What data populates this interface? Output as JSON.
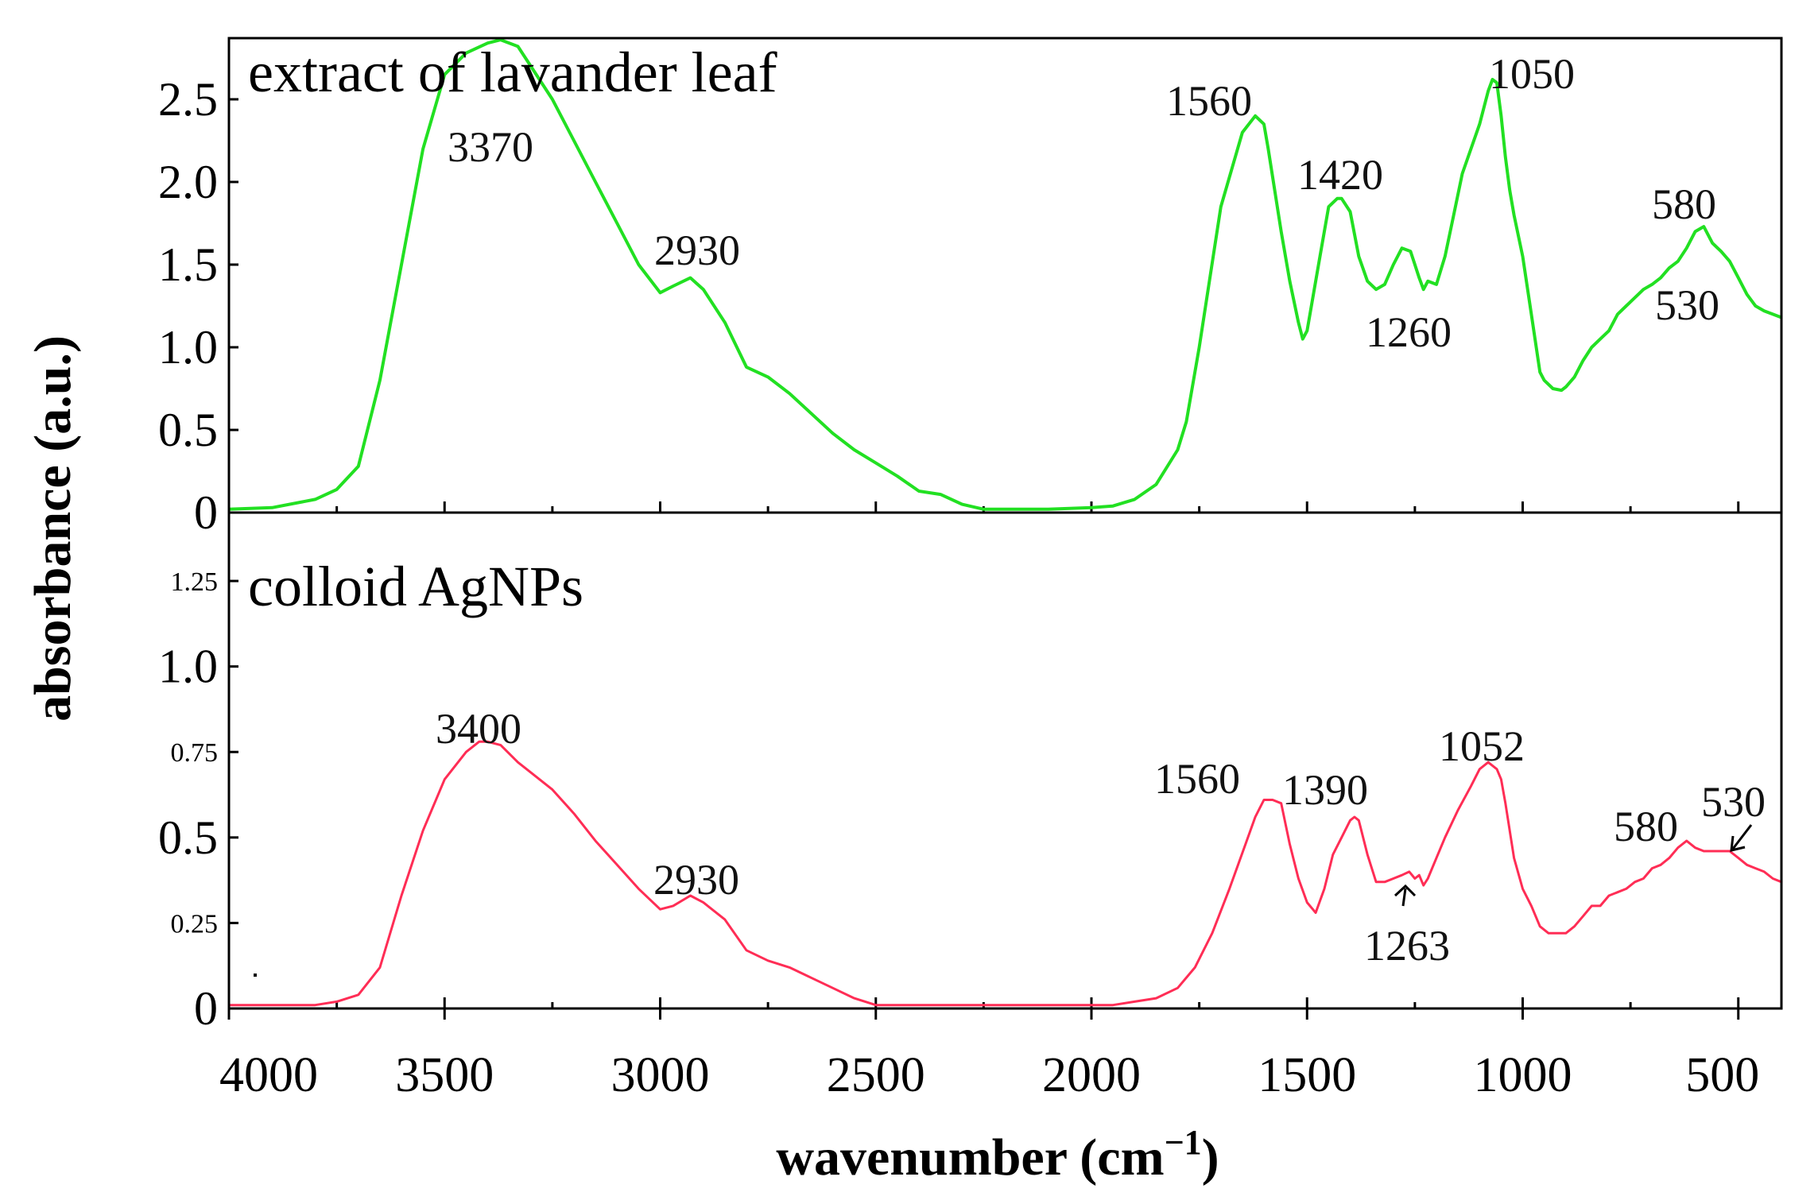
{
  "chart_data": [
    {
      "type": "line",
      "title": "extract of lavander leaf",
      "color": "#22e022",
      "xlim": [
        4000,
        400
      ],
      "ylim": [
        0,
        2.87
      ],
      "y_ticks": [
        {
          "v": 0,
          "label": "0",
          "size": "large"
        },
        {
          "v": 0.5,
          "label": "0.5",
          "size": "large"
        },
        {
          "v": 1.0,
          "label": "1.0",
          "size": "large"
        },
        {
          "v": 1.5,
          "label": "1.5",
          "size": "large"
        },
        {
          "v": 2.0,
          "label": "2.0",
          "size": "large"
        },
        {
          "v": 2.5,
          "label": "2.5",
          "size": "large"
        }
      ],
      "annotations": [
        "3370",
        "2930",
        "1560",
        "1420",
        "1260",
        "1050",
        "580",
        "530"
      ],
      "x": [
        4000,
        3900,
        3800,
        3750,
        3700,
        3650,
        3600,
        3550,
        3500,
        3450,
        3400,
        3370,
        3330,
        3300,
        3250,
        3200,
        3150,
        3100,
        3050,
        3000,
        2970,
        2930,
        2900,
        2850,
        2800,
        2750,
        2700,
        2650,
        2600,
        2550,
        2500,
        2450,
        2400,
        2350,
        2300,
        2250,
        2200,
        2100,
        2000,
        1950,
        1900,
        1850,
        1800,
        1780,
        1750,
        1700,
        1650,
        1620,
        1600,
        1590,
        1560,
        1540,
        1520,
        1510,
        1500,
        1490,
        1470,
        1450,
        1430,
        1420,
        1400,
        1380,
        1360,
        1340,
        1320,
        1300,
        1280,
        1260,
        1250,
        1240,
        1230,
        1220,
        1200,
        1180,
        1160,
        1140,
        1120,
        1100,
        1080,
        1070,
        1060,
        1050,
        1040,
        1030,
        1020,
        1000,
        980,
        960,
        950,
        930,
        910,
        900,
        880,
        860,
        840,
        820,
        800,
        780,
        760,
        740,
        720,
        700,
        680,
        660,
        640,
        620,
        600,
        580,
        560,
        540,
        520,
        500,
        480,
        460,
        440,
        420,
        400
      ],
      "y": [
        0.02,
        0.03,
        0.08,
        0.14,
        0.28,
        0.8,
        1.5,
        2.2,
        2.65,
        2.78,
        2.84,
        2.86,
        2.82,
        2.7,
        2.5,
        2.25,
        2.0,
        1.75,
        1.5,
        1.33,
        1.37,
        1.42,
        1.35,
        1.15,
        0.88,
        0.82,
        0.72,
        0.6,
        0.48,
        0.38,
        0.3,
        0.22,
        0.13,
        0.11,
        0.05,
        0.02,
        0.02,
        0.02,
        0.03,
        0.04,
        0.08,
        0.17,
        0.38,
        0.55,
        1.0,
        1.85,
        2.3,
        2.4,
        2.35,
        2.2,
        1.7,
        1.4,
        1.15,
        1.05,
        1.1,
        1.25,
        1.55,
        1.85,
        1.9,
        1.9,
        1.82,
        1.55,
        1.4,
        1.35,
        1.38,
        1.5,
        1.6,
        1.58,
        1.5,
        1.42,
        1.35,
        1.4,
        1.38,
        1.55,
        1.8,
        2.05,
        2.2,
        2.35,
        2.55,
        2.62,
        2.6,
        2.4,
        2.15,
        1.95,
        1.8,
        1.55,
        1.2,
        0.85,
        0.8,
        0.75,
        0.74,
        0.76,
        0.82,
        0.92,
        1.0,
        1.05,
        1.1,
        1.2,
        1.25,
        1.3,
        1.35,
        1.38,
        1.42,
        1.48,
        1.52,
        1.6,
        1.7,
        1.73,
        1.63,
        1.58,
        1.52,
        1.42,
        1.32,
        1.25,
        1.22,
        1.2,
        1.18
      ]
    },
    {
      "type": "line",
      "title": "colloid AgNPs",
      "color": "#ff2d55",
      "xlim": [
        4000,
        400
      ],
      "ylim": [
        0,
        1.45
      ],
      "y_ticks": [
        {
          "v": 0,
          "label": "0",
          "size": "large"
        },
        {
          "v": 0.25,
          "label": "0.25",
          "size": "small"
        },
        {
          "v": 0.5,
          "label": "0.5",
          "size": "large"
        },
        {
          "v": 0.75,
          "label": "0.75",
          "size": "small"
        },
        {
          "v": 1.0,
          "label": "1.0",
          "size": "large"
        },
        {
          "v": 1.25,
          "label": "1.25",
          "size": "small"
        }
      ],
      "annotations": [
        "3400",
        "2930",
        "1560",
        "1390",
        "1263",
        "1052",
        "580",
        "530"
      ],
      "x": [
        4000,
        3900,
        3800,
        3750,
        3700,
        3650,
        3600,
        3550,
        3500,
        3450,
        3420,
        3400,
        3370,
        3330,
        3300,
        3250,
        3200,
        3150,
        3100,
        3050,
        3000,
        2970,
        2930,
        2900,
        2850,
        2800,
        2750,
        2700,
        2650,
        2600,
        2550,
        2500,
        2450,
        2400,
        2300,
        2200,
        2100,
        2000,
        1950,
        1900,
        1850,
        1800,
        1760,
        1720,
        1680,
        1640,
        1620,
        1600,
        1580,
        1560,
        1540,
        1520,
        1500,
        1480,
        1460,
        1440,
        1420,
        1400,
        1390,
        1380,
        1360,
        1340,
        1320,
        1300,
        1280,
        1263,
        1250,
        1240,
        1230,
        1220,
        1200,
        1180,
        1150,
        1120,
        1100,
        1080,
        1060,
        1050,
        1040,
        1020,
        1000,
        980,
        960,
        940,
        920,
        900,
        880,
        860,
        840,
        820,
        800,
        780,
        760,
        740,
        720,
        700,
        680,
        660,
        640,
        620,
        600,
        580,
        560,
        540,
        520,
        500,
        480,
        460,
        440,
        420,
        400
      ],
      "y": [
        0.01,
        0.01,
        0.01,
        0.02,
        0.04,
        0.12,
        0.33,
        0.52,
        0.67,
        0.75,
        0.78,
        0.78,
        0.77,
        0.72,
        0.69,
        0.64,
        0.57,
        0.49,
        0.42,
        0.35,
        0.29,
        0.3,
        0.33,
        0.31,
        0.26,
        0.17,
        0.14,
        0.12,
        0.09,
        0.06,
        0.03,
        0.01,
        0.01,
        0.01,
        0.01,
        0.01,
        0.01,
        0.01,
        0.01,
        0.02,
        0.03,
        0.06,
        0.12,
        0.22,
        0.35,
        0.49,
        0.56,
        0.61,
        0.61,
        0.6,
        0.48,
        0.38,
        0.31,
        0.28,
        0.35,
        0.45,
        0.5,
        0.55,
        0.56,
        0.55,
        0.45,
        0.37,
        0.37,
        0.38,
        0.39,
        0.4,
        0.38,
        0.39,
        0.36,
        0.38,
        0.44,
        0.5,
        0.58,
        0.65,
        0.7,
        0.72,
        0.7,
        0.67,
        0.6,
        0.44,
        0.35,
        0.3,
        0.24,
        0.22,
        0.22,
        0.22,
        0.24,
        0.27,
        0.3,
        0.3,
        0.33,
        0.34,
        0.35,
        0.37,
        0.38,
        0.41,
        0.42,
        0.44,
        0.47,
        0.49,
        0.47,
        0.46,
        0.46,
        0.46,
        0.46,
        0.44,
        0.42,
        0.41,
        0.4,
        0.38,
        0.37
      ]
    }
  ],
  "x_ticks": [
    4000,
    3500,
    3000,
    2500,
    2000,
    1500,
    1000,
    500
  ],
  "x_tick_labels": [
    "4000",
    "3500",
    "3000",
    "2500",
    "2000",
    "1500",
    "1000",
    "500"
  ],
  "xlabel": "wavenumber (cm",
  "xlabel_sup": "−1",
  "xlabel_end": ")",
  "ylabel": "absorbance (a.u.)"
}
